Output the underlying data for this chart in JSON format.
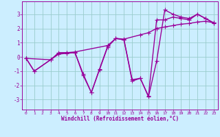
{
  "line1_x": [
    0,
    1,
    3,
    4,
    5,
    6,
    7,
    8,
    9,
    10,
    11,
    12,
    13,
    14,
    15,
    16,
    17,
    18,
    19,
    20,
    21,
    22,
    23
  ],
  "line1_y": [
    -0.1,
    -1.0,
    -0.2,
    0.3,
    0.3,
    0.3,
    -1.3,
    -2.5,
    -0.9,
    0.7,
    1.3,
    1.2,
    -1.7,
    -1.5,
    -2.8,
    -0.3,
    3.3,
    3.0,
    2.8,
    2.7,
    3.0,
    2.7,
    2.4
  ],
  "line2_x": [
    0,
    1,
    3,
    4,
    5,
    6,
    7,
    8,
    9,
    10,
    11,
    12,
    13,
    14,
    15,
    16,
    17,
    18,
    19,
    20,
    21,
    22,
    23
  ],
  "line2_y": [
    -0.1,
    -1.0,
    -0.2,
    0.2,
    0.25,
    0.3,
    -1.2,
    -2.5,
    -0.85,
    0.75,
    1.3,
    1.2,
    -1.6,
    -1.5,
    -2.75,
    2.6,
    2.6,
    2.8,
    2.7,
    2.6,
    3.0,
    2.7,
    2.35
  ],
  "line3_x": [
    0,
    3,
    4,
    5,
    6,
    10,
    11,
    12,
    14,
    15,
    16,
    17,
    18,
    19,
    20,
    21,
    22,
    23
  ],
  "line3_y": [
    -0.1,
    -0.2,
    0.25,
    0.3,
    0.35,
    0.8,
    1.3,
    1.25,
    1.55,
    1.7,
    2.0,
    2.1,
    2.2,
    2.3,
    2.35,
    2.45,
    2.5,
    2.4
  ],
  "color": "#990099",
  "bg_color": "#cceeff",
  "grid_color": "#99cccc",
  "xlabel": "Windchill (Refroidissement éolien,°C)",
  "xlim": [
    -0.5,
    23.5
  ],
  "ylim": [
    -3.7,
    3.9
  ],
  "yticks": [
    -3,
    -2,
    -1,
    0,
    1,
    2,
    3
  ],
  "xticks": [
    0,
    1,
    2,
    3,
    4,
    5,
    6,
    7,
    8,
    9,
    10,
    11,
    12,
    13,
    14,
    15,
    16,
    17,
    18,
    19,
    20,
    21,
    22,
    23
  ],
  "marker": "+",
  "markersize": 4,
  "linewidth": 1.0
}
